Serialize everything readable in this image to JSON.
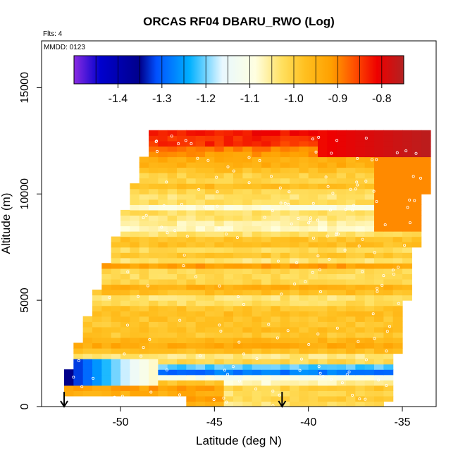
{
  "chart_data": {
    "type": "heatmap",
    "title": "ORCAS RF04 DBARU_RWO (Log)",
    "flights_label": "Flts: 4",
    "mmdd_label": "MMDD: 0123",
    "xlabel": "Latitude (deg N)",
    "ylabel": "Altitude (m)",
    "xlim": [
      -54.2,
      -33.2
    ],
    "ylim": [
      0,
      17200
    ],
    "x_ticks": [
      -50,
      -45,
      -40,
      -35
    ],
    "x_tick_labels": [
      "-50",
      "-45",
      "-40",
      "-35"
    ],
    "y_ticks": [
      0,
      5000,
      10000,
      15000
    ],
    "y_tick_labels": [
      "0",
      "5000",
      "10000",
      "15000"
    ],
    "colorbar": {
      "range": [
        -1.5,
        -0.75
      ],
      "ticks": [
        -1.4,
        -1.3,
        -1.2,
        -1.1,
        -1.0,
        -0.9,
        -0.8
      ],
      "tick_labels": [
        "-1.4",
        "-1.3",
        "-1.2",
        "-1.1",
        "-1.0",
        "-0.9",
        "-0.8"
      ],
      "colors": [
        "#8a2be2",
        "#0000cd",
        "#00008b",
        "#0050ff",
        "#00b0ff",
        "#e8f8ff",
        "#ffffe0",
        "#ffe060",
        "#ffc020",
        "#ffa000",
        "#ff5000",
        "#ee0000",
        "#b22222"
      ]
    },
    "domain": {
      "lat_min": -53.0,
      "lat_max": -34.5,
      "alt_min": 0,
      "alt_max": 12900
    },
    "profiles": [
      {
        "alt_m": 500,
        "value": -0.92
      },
      {
        "alt_m": 1000,
        "value": -1.0
      },
      {
        "alt_m": 1500,
        "value": -1.3
      },
      {
        "alt_m": 2000,
        "value": -1.05
      },
      {
        "alt_m": 2500,
        "value": -0.95
      },
      {
        "alt_m": 3000,
        "value": -0.97
      },
      {
        "alt_m": 3500,
        "value": -0.93
      },
      {
        "alt_m": 4000,
        "value": -0.98
      },
      {
        "alt_m": 4500,
        "value": -0.95
      },
      {
        "alt_m": 5000,
        "value": -1.0
      },
      {
        "alt_m": 5500,
        "value": -0.97
      },
      {
        "alt_m": 6000,
        "value": -0.99
      },
      {
        "alt_m": 6500,
        "value": -0.97
      },
      {
        "alt_m": 7000,
        "value": -1.02
      },
      {
        "alt_m": 7500,
        "value": -1.0
      },
      {
        "alt_m": 8000,
        "value": -1.03
      },
      {
        "alt_m": 8500,
        "value": -1.05
      },
      {
        "alt_m": 9000,
        "value": -1.07
      },
      {
        "alt_m": 9500,
        "value": -1.04
      },
      {
        "alt_m": 10000,
        "value": -1.0
      },
      {
        "alt_m": 10500,
        "value": -0.97
      },
      {
        "alt_m": 11000,
        "value": -0.95
      },
      {
        "alt_m": 11500,
        "value": -0.92
      },
      {
        "alt_m": 12000,
        "value": -0.88
      },
      {
        "alt_m": 12500,
        "value": -0.82
      }
    ],
    "arrows_lat": [
      -53.0,
      -41.4
    ]
  }
}
